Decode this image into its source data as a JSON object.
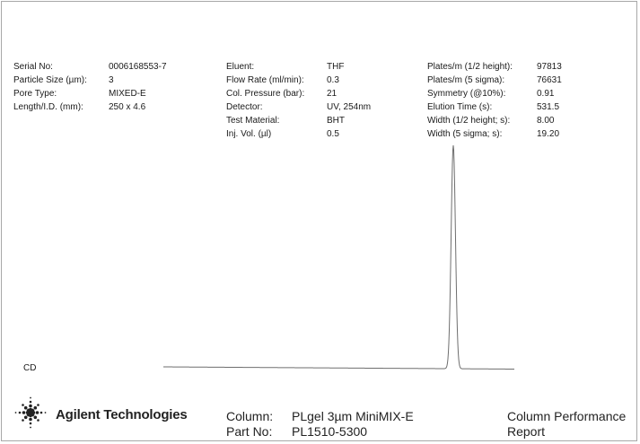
{
  "parameters": {
    "column1": [
      {
        "label": "Serial No:",
        "value": "0006168553-7"
      },
      {
        "label": "Particle Size (µm):",
        "value": "3"
      },
      {
        "label": "Pore Type:",
        "value": "MIXED-E"
      },
      {
        "label": "Length/I.D. (mm):",
        "value": "250 x 4.6"
      }
    ],
    "column2": [
      {
        "label": "Eluent:",
        "value": "THF"
      },
      {
        "label": "Flow Rate (ml/min):",
        "value": "0.3"
      },
      {
        "label": "Col. Pressure (bar):",
        "value": "21"
      },
      {
        "label": "Detector:",
        "value": "UV, 254nm"
      },
      {
        "label": "Test Material:",
        "value": "BHT"
      },
      {
        "label": "Inj. Vol. (µl)",
        "value": "0.5"
      }
    ],
    "column3": [
      {
        "label": "Plates/m (1/2 height):",
        "value": "97813"
      },
      {
        "label": "Plates/m (5 sigma):",
        "value": "76631"
      },
      {
        "label": "Symmetry (@10%):",
        "value": "0.91"
      },
      {
        "label": "Elution Time (s):",
        "value": "531.5"
      },
      {
        "label": "Width (1/2 height; s):",
        "value": "8.00"
      },
      {
        "label": "Width (5 sigma; s):",
        "value": "19.20"
      }
    ]
  },
  "chromatogram": {
    "detector_label": "CD",
    "line_color": "#6e6e6e"
  },
  "footer": {
    "company": "Agilent Technologies",
    "logo_icon": "agilent-spark-icon",
    "column_label": "Column:",
    "column_value": "PLgel 3µm MiniMIX-E",
    "part_label": "Part No:",
    "part_value": "PL1510-5300",
    "report_title": "Column Performance Report"
  }
}
